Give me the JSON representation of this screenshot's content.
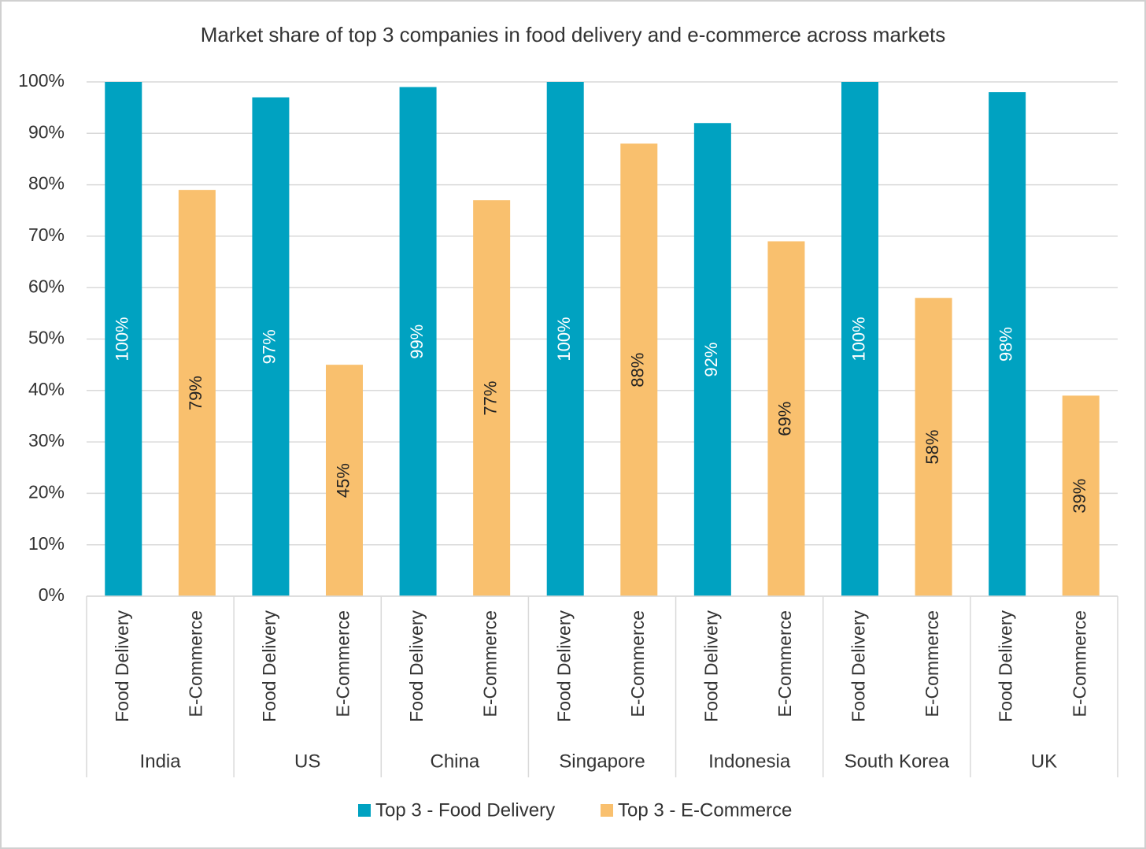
{
  "chart_data": {
    "type": "bar",
    "title": "Market share of top 3 companies in food delivery and e-commerce across markets",
    "categories": [
      "India",
      "US",
      "China",
      "Singapore",
      "Indonesia",
      "South Korea",
      "UK"
    ],
    "subcategories": [
      "Food Delivery",
      "E-Commerce"
    ],
    "series": [
      {
        "name": "Top 3 - Food Delivery",
        "color": "#00a2c1",
        "label_color": "#ffffff",
        "values": [
          100,
          97,
          99,
          100,
          92,
          100,
          98
        ],
        "value_labels": [
          "100%",
          "97%",
          "99%",
          "100%",
          "92%",
          "100%",
          "98%"
        ]
      },
      {
        "name": "Top 3 - E-Commerce",
        "color": "#f9c06e",
        "label_color": "#222222",
        "values": [
          79,
          45,
          77,
          88,
          69,
          58,
          39
        ],
        "value_labels": [
          "79%",
          "45%",
          "77%",
          "88%",
          "69%",
          "58%",
          "39%"
        ]
      }
    ],
    "ylim": [
      0,
      100
    ],
    "yticks": [
      {
        "value": 0,
        "label": "0%"
      },
      {
        "value": 10,
        "label": "10%"
      },
      {
        "value": 20,
        "label": "20%"
      },
      {
        "value": 30,
        "label": "30%"
      },
      {
        "value": 40,
        "label": "40%"
      },
      {
        "value": 50,
        "label": "50%"
      },
      {
        "value": 60,
        "label": "60%"
      },
      {
        "value": 70,
        "label": "70%"
      },
      {
        "value": 80,
        "label": "80%"
      },
      {
        "value": 90,
        "label": "90%"
      },
      {
        "value": 100,
        "label": "100%"
      }
    ],
    "grid": true,
    "legend": "bottom"
  }
}
